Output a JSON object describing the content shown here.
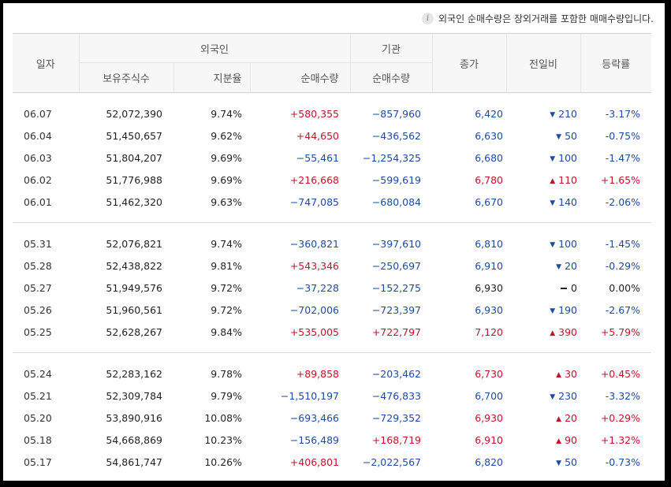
{
  "note": {
    "text": "외국인 순매수량은 장외거래를 포함한 매매수량입니다.",
    "icon": "info-icon"
  },
  "header": {
    "date": "일자",
    "foreign": "외국인",
    "institution": "기관",
    "holdings": "보유주식수",
    "share_ratio": "지분율",
    "foreign_net": "순매수량",
    "inst_net": "순매수량",
    "close": "종가",
    "change": "전일비",
    "rate": "등락률"
  },
  "colors": {
    "up": "#c0142b",
    "down": "#1e4aa0"
  },
  "groups": [
    [
      {
        "date": "06.07",
        "holdings": "52,072,390",
        "ratio": "9.74%",
        "foreign": "+580,355",
        "inst": "−857,960",
        "close": "6,420",
        "dir": "down",
        "change": "210",
        "rate": "-3.17%"
      },
      {
        "date": "06.04",
        "holdings": "51,450,657",
        "ratio": "9.62%",
        "foreign": "+44,650",
        "inst": "−436,562",
        "close": "6,630",
        "dir": "down",
        "change": "50",
        "rate": "-0.75%"
      },
      {
        "date": "06.03",
        "holdings": "51,804,207",
        "ratio": "9.69%",
        "foreign": "−55,461",
        "inst": "−1,254,325",
        "close": "6,680",
        "dir": "down",
        "change": "100",
        "rate": "-1.47%"
      },
      {
        "date": "06.02",
        "holdings": "51,776,988",
        "ratio": "9.69%",
        "foreign": "+216,668",
        "inst": "−599,619",
        "close": "6,780",
        "dir": "up",
        "change": "110",
        "rate": "+1.65%"
      },
      {
        "date": "06.01",
        "holdings": "51,462,320",
        "ratio": "9.63%",
        "foreign": "−747,085",
        "inst": "−680,084",
        "close": "6,670",
        "dir": "down",
        "change": "140",
        "rate": "-2.06%"
      }
    ],
    [
      {
        "date": "05.31",
        "holdings": "52,076,821",
        "ratio": "9.74%",
        "foreign": "−360,821",
        "inst": "−397,610",
        "close": "6,810",
        "dir": "down",
        "change": "100",
        "rate": "-1.45%"
      },
      {
        "date": "05.28",
        "holdings": "52,438,822",
        "ratio": "9.81%",
        "foreign": "+543,346",
        "inst": "−250,697",
        "close": "6,910",
        "dir": "down",
        "change": "20",
        "rate": "-0.29%"
      },
      {
        "date": "05.27",
        "holdings": "51,949,576",
        "ratio": "9.72%",
        "foreign": "−37,228",
        "inst": "−152,275",
        "close": "6,930",
        "dir": "flat",
        "change": "0",
        "rate": "0.00%"
      },
      {
        "date": "05.26",
        "holdings": "51,960,561",
        "ratio": "9.72%",
        "foreign": "−702,006",
        "inst": "−723,397",
        "close": "6,930",
        "dir": "down",
        "change": "190",
        "rate": "-2.67%"
      },
      {
        "date": "05.25",
        "holdings": "52,628,267",
        "ratio": "9.84%",
        "foreign": "+535,005",
        "inst": "+722,797",
        "close": "7,120",
        "dir": "up",
        "change": "390",
        "rate": "+5.79%"
      }
    ],
    [
      {
        "date": "05.24",
        "holdings": "52,283,162",
        "ratio": "9.78%",
        "foreign": "+89,858",
        "inst": "−203,462",
        "close": "6,730",
        "dir": "up",
        "change": "30",
        "rate": "+0.45%"
      },
      {
        "date": "05.21",
        "holdings": "52,309,784",
        "ratio": "9.79%",
        "foreign": "−1,510,197",
        "inst": "−476,833",
        "close": "6,700",
        "dir": "down",
        "change": "230",
        "rate": "-3.32%"
      },
      {
        "date": "05.20",
        "holdings": "53,890,916",
        "ratio": "10.08%",
        "foreign": "−693,466",
        "inst": "−729,352",
        "close": "6,930",
        "dir": "up",
        "change": "20",
        "rate": "+0.29%"
      },
      {
        "date": "05.18",
        "holdings": "54,668,869",
        "ratio": "10.23%",
        "foreign": "−156,489",
        "inst": "+168,719",
        "close": "6,910",
        "dir": "up",
        "change": "90",
        "rate": "+1.32%"
      },
      {
        "date": "05.17",
        "holdings": "54,861,747",
        "ratio": "10.26%",
        "foreign": "+406,801",
        "inst": "−2,022,567",
        "close": "6,820",
        "dir": "down",
        "change": "50",
        "rate": "-0.73%"
      }
    ]
  ]
}
